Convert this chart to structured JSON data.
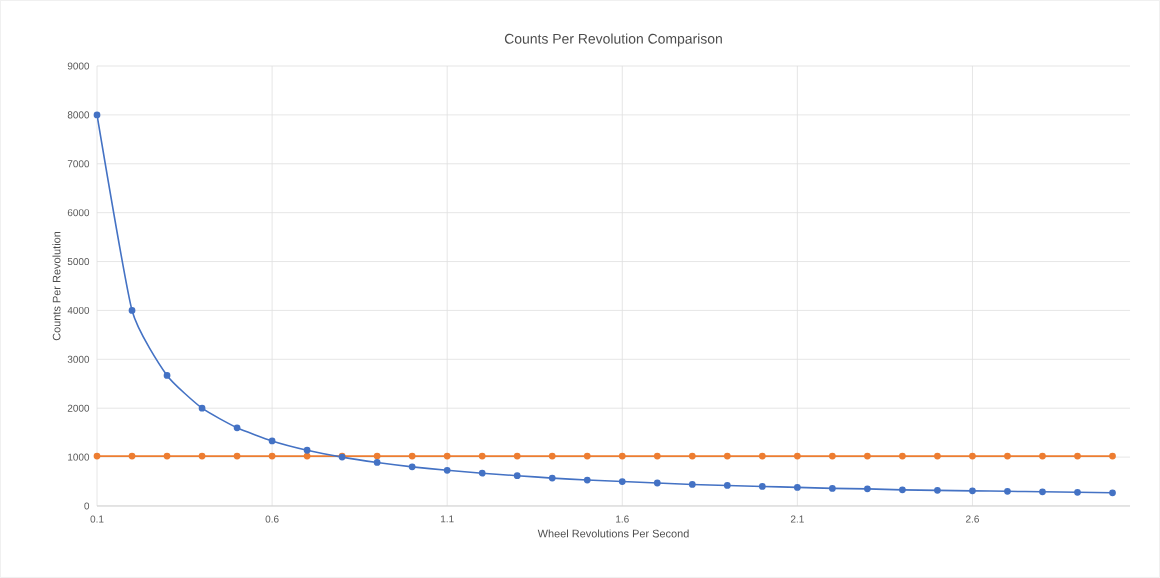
{
  "chart_data": {
    "type": "line",
    "title": "Counts Per Revolution Comparison",
    "xlabel": "Wheel Revolutions Per Second",
    "ylabel": "Counts Per Revolution",
    "x": [
      0.1,
      0.2,
      0.3,
      0.4,
      0.5,
      0.6,
      0.7,
      0.8,
      0.9,
      1.0,
      1.1,
      1.2,
      1.3,
      1.4,
      1.5,
      1.6,
      1.7,
      1.8,
      1.9,
      2.0,
      2.1,
      2.2,
      2.3,
      2.4,
      2.5,
      2.6,
      2.7,
      2.8,
      2.9,
      3.0
    ],
    "series": [
      {
        "color": "#4472c4",
        "values": [
          8000,
          4000,
          2670,
          2000,
          1600,
          1330,
          1140,
          1000,
          890,
          800,
          730,
          670,
          620,
          570,
          530,
          500,
          470,
          440,
          420,
          400,
          380,
          360,
          350,
          330,
          320,
          310,
          300,
          290,
          280,
          270
        ]
      },
      {
        "color": "#ed7d31",
        "values": [
          1020,
          1020,
          1020,
          1020,
          1020,
          1020,
          1020,
          1020,
          1020,
          1020,
          1020,
          1020,
          1020,
          1020,
          1020,
          1020,
          1020,
          1020,
          1020,
          1020,
          1020,
          1020,
          1020,
          1020,
          1020,
          1020,
          1020,
          1020,
          1020,
          1020
        ]
      }
    ],
    "xlim": [
      0.1,
      3.05
    ],
    "xticks": [
      0.1,
      0.6,
      1.1,
      1.6,
      2.1,
      2.6
    ],
    "ylim": [
      0,
      9000
    ],
    "yticks": [
      0,
      1000,
      2000,
      3000,
      4000,
      5000,
      6000,
      7000,
      8000,
      9000
    ],
    "grid": true,
    "marker": "circle",
    "line_style": "solid"
  }
}
